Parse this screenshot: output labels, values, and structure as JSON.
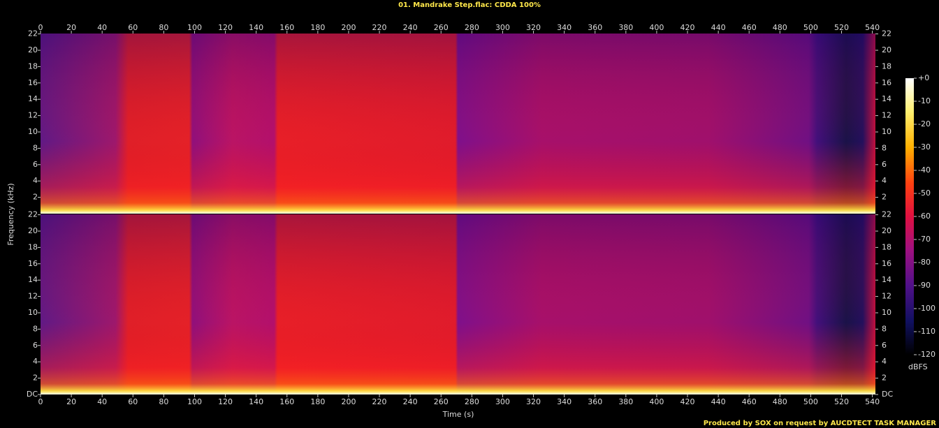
{
  "chart_data": {
    "type": "spectrogram",
    "title": "01. Mandrake Step.flac: CDDA 100%",
    "x_label": "Time (s)",
    "y_label": "Frequency (kHz)",
    "xlim": [
      0,
      542
    ],
    "xticks": [
      0,
      20,
      40,
      60,
      80,
      100,
      120,
      140,
      160,
      180,
      200,
      220,
      240,
      260,
      280,
      300,
      320,
      340,
      360,
      380,
      400,
      420,
      440,
      460,
      480,
      500,
      520,
      540
    ],
    "ylim": [
      0,
      22.05
    ],
    "yticks": [
      {
        "value": 0,
        "label": "DC"
      },
      2,
      4,
      6,
      8,
      10,
      12,
      14,
      16,
      18,
      20,
      22
    ],
    "colorbar": {
      "label": "dBFS",
      "lim": [
        -120,
        0
      ],
      "ticks": [
        {
          "value": 0,
          "label": "+0"
        },
        -10,
        -20,
        -30,
        -40,
        -50,
        -60,
        -70,
        -80,
        -90,
        -100,
        -110,
        -120
      ]
    },
    "footer": "Produced by SOX on request by AUCDTECT TASK MANAGER"
  }
}
